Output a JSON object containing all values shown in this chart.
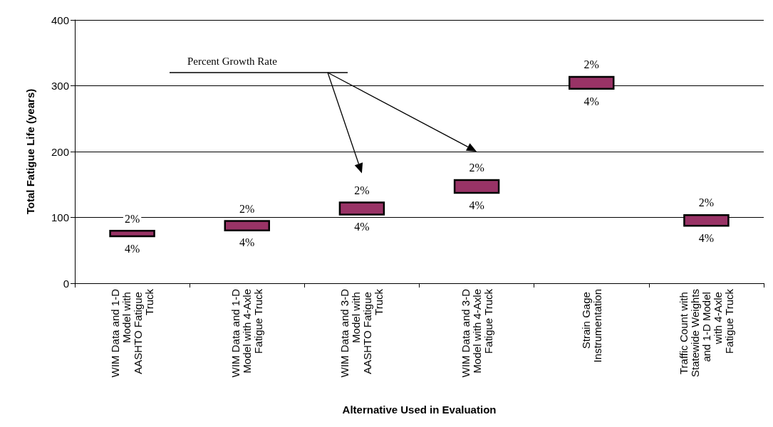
{
  "chart_data": {
    "type": "bar",
    "xlabel": "Alternative Used in Evaluation",
    "ylabel": "Total Fatigue Life (years)",
    "categories": [
      "WIM Data and 1-D Model with AASHTO Fatigue Truck",
      "WIM Data and 1-D Model with 4-Axle Fatigue Truck",
      "WIM Data and 3-D Model with AASHTO Fatigue Truck",
      "WIM Data and 3-D Model with 4-Axle Fatigue Truck",
      "Strain Gage Instrumentation",
      "Traffic Count with Statewide Weights and 1-D Model with 4-Axle Fatigue Truck"
    ],
    "base": [
      70,
      79,
      103,
      136,
      294,
      86
    ],
    "values": [
      11,
      17,
      21,
      22,
      21,
      19
    ],
    "color": "#993366",
    "ylim": [
      0,
      400
    ],
    "yticks": [
      0,
      100,
      200,
      300,
      400
    ],
    "grid": "y",
    "annotations": [
      "Percent Growth Rate",
      {
        "text": "2%",
        "x": "WIM Data and 1-D Model with AASHTO Fatigue Truck",
        "y": 81
      },
      {
        "text": "4%",
        "x": "WIM Data and 1-D Model with AASHTO Fatigue Truck",
        "y": 70
      },
      {
        "text": "2%",
        "x": "WIM Data and 1-D Model with 4-Axle Fatigue Truck",
        "y": 96
      },
      {
        "text": "4%",
        "x": "WIM Data and 1-D Model with 4-Axle Fatigue Truck",
        "y": 79
      },
      {
        "text": "2%",
        "x": "WIM Data and 3-D Model with AASHTO Fatigue Truck",
        "y": 124
      },
      {
        "text": "4%",
        "x": "WIM Data and 3-D Model with AASHTO Fatigue Truck",
        "y": 103
      },
      {
        "text": "2%",
        "x": "WIM Data and 3-D Model with 4-Axle Fatigue Truck",
        "y": 158
      },
      {
        "text": "4%",
        "x": "WIM Data and 3-D Model with 4-Axle Fatigue Truck",
        "y": 136
      },
      {
        "text": "2%",
        "x": "Strain Gage Instrumentation",
        "y": 315
      },
      {
        "text": "4%",
        "x": "Strain Gage Instrumentation",
        "y": 294
      },
      {
        "text": "2%",
        "x": "Traffic Count with Statewide Weights and 1-D Model with 4-Axle Fatigue Truck",
        "y": 105
      },
      {
        "text": "4%",
        "x": "Traffic Count with Statewide Weights and 1-D Model with 4-Axle Fatigue Truck",
        "y": 86
      }
    ]
  }
}
